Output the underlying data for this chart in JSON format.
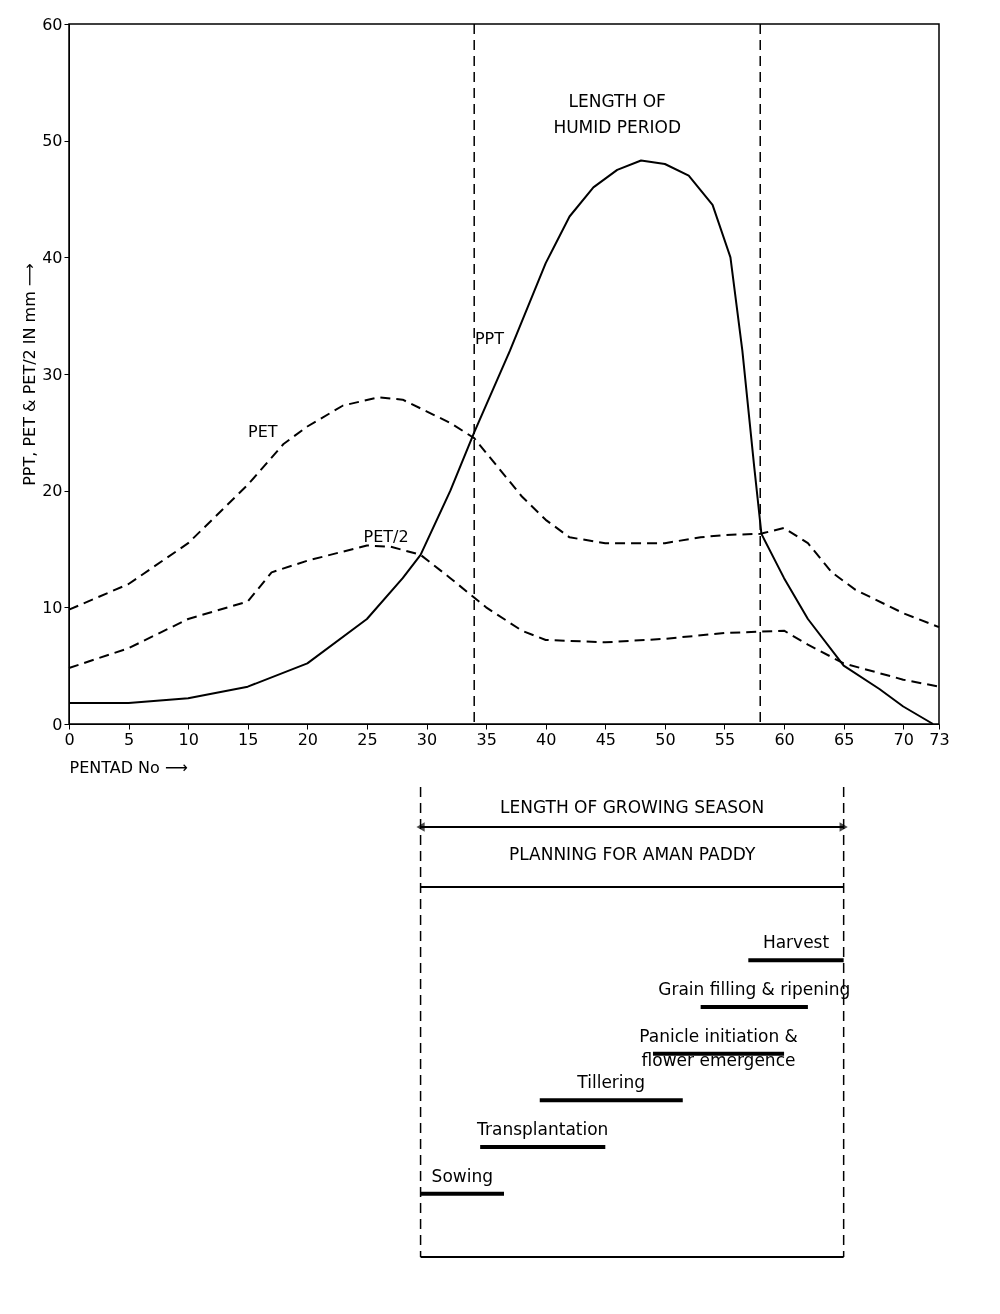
{
  "chart_data": [
    {
      "type": "line",
      "xlabel": "PENTAD No ⟶",
      "ylabel": "PPT, PET & PET/2 IN mm ⟶",
      "xlim": [
        0,
        73
      ],
      "xticks": [
        0,
        5,
        10,
        15,
        20,
        25,
        30,
        35,
        40,
        45,
        50,
        55,
        60,
        65,
        70,
        73
      ],
      "ylim": [
        0,
        60
      ],
      "yticks": [
        0,
        10,
        20,
        30,
        40,
        50,
        60
      ],
      "grid": false,
      "series": [
        {
          "color": "#000000",
          "line_style": "solid",
          "x": [
            0,
            5,
            10,
            15,
            20,
            25,
            28,
            29.5,
            32,
            34,
            37,
            40,
            42,
            44,
            46,
            48,
            50,
            52,
            54,
            55.5,
            56.5,
            57.5,
            58.1,
            60,
            62,
            65,
            68,
            70,
            72.5
          ],
          "values": [
            1.8,
            1.8,
            2.2,
            3.2,
            5.2,
            9,
            12.5,
            14.5,
            20,
            25,
            32,
            39.5,
            43.5,
            46,
            47.5,
            48.3,
            48,
            47,
            44.5,
            40,
            32,
            22,
            16.3,
            12.5,
            9,
            5,
            3,
            1.5,
            0
          ]
        },
        {
          "color": "#000000",
          "line_style": "dashed",
          "x": [
            0,
            5,
            10,
            15,
            18,
            20,
            23,
            26,
            28,
            30,
            32,
            34,
            36,
            38,
            40,
            42,
            45,
            50,
            53,
            55,
            58,
            60,
            62,
            64,
            66,
            70,
            73
          ],
          "values": [
            9.8,
            12,
            15.5,
            20.5,
            24,
            25.5,
            27.3,
            28,
            27.8,
            26.8,
            25.8,
            24.5,
            22,
            19.5,
            17.5,
            16,
            15.5,
            15.5,
            16,
            16.2,
            16.3,
            16.8,
            15.5,
            13,
            11.5,
            9.5,
            8.3
          ]
        },
        {
          "color": "#000000",
          "line_style": "dashed",
          "x": [
            0,
            5,
            10,
            15,
            17,
            20,
            25,
            27,
            29.5,
            32,
            35,
            38,
            40,
            45,
            50,
            55,
            60,
            62,
            65,
            70,
            73
          ],
          "values": [
            4.8,
            6.5,
            9,
            10.5,
            13,
            14,
            15.3,
            15.2,
            14.5,
            12.5,
            10,
            8,
            7.2,
            7,
            7.3,
            7.8,
            8,
            6.8,
            5.2,
            3.8,
            3.2
          ]
        }
      ],
      "ref_lines": [
        {
          "axis": "x",
          "value": 34,
          "line_style": "dashed"
        },
        {
          "axis": "x",
          "value": 58,
          "line_style": "dashed"
        }
      ],
      "annotations": [
        "LENGTH OF\nHUMID PERIOD",
        {
          "text": "PPT",
          "x": 37,
          "y": 32
        },
        {
          "text": "PET",
          "x": 18,
          "y": 24
        },
        {
          "text": "PET/2",
          "x": 29,
          "y": 15
        }
      ]
    },
    {
      "type": "bar",
      "orientation": "horizontal",
      "title": "PLANNING FOR AMAN PADDY",
      "xlim": [
        0,
        73
      ],
      "tick_labels": false,
      "color": "#000000",
      "categories": [
        "Harvest",
        "Grain filling & ripening",
        "Panicle initiation &\nflower emergence",
        "Tillering",
        "Transplantation",
        "Sowing"
      ],
      "base": [
        57,
        53,
        49,
        39.5,
        34.5,
        29.5
      ],
      "values": [
        8,
        9,
        11,
        12,
        10.5,
        7
      ],
      "ref_lines": [
        {
          "axis": "x",
          "value": 29.5,
          "line_style": "dashed"
        },
        {
          "axis": "x",
          "value": 65,
          "line_style": "dashed"
        }
      ],
      "annotations": [
        "LENGTH OF GROWING SEASON"
      ]
    }
  ]
}
